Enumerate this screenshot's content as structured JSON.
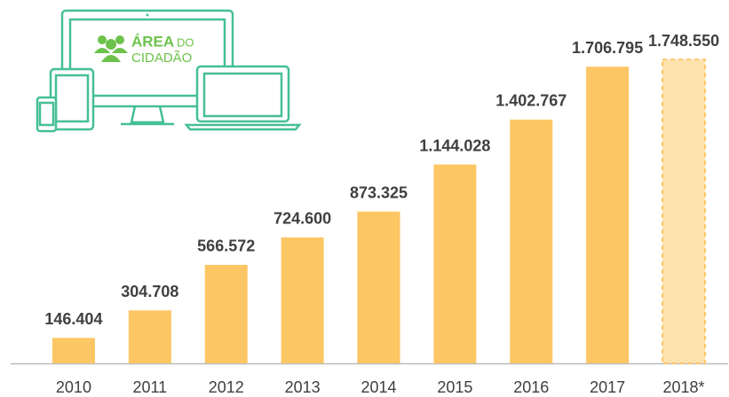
{
  "logo": {
    "word1": "ÁREA",
    "word2": "DO",
    "word3": "CIDADÃO"
  },
  "chart_data": {
    "type": "bar",
    "categories": [
      "2010",
      "2011",
      "2012",
      "2013",
      "2014",
      "2015",
      "2016",
      "2017",
      "2018*"
    ],
    "values": [
      146404,
      304708,
      566572,
      724600,
      873325,
      1144028,
      1402767,
      1706795,
      1748550
    ],
    "value_labels": [
      "146.404",
      "304.708",
      "566.572",
      "724.600",
      "873.325",
      "1.144.028",
      "1.402.767",
      "1.706.795",
      "1.748.550"
    ],
    "colors": [
      "#fdc664",
      "#fdc664",
      "#fdc664",
      "#fdc664",
      "#fdc664",
      "#fdc664",
      "#fdc664",
      "#fdc664",
      "#fde2ae"
    ],
    "styles": [
      "solid",
      "solid",
      "solid",
      "solid",
      "solid",
      "solid",
      "solid",
      "solid",
      "dashed"
    ],
    "ylim": [
      0,
      1800000
    ]
  }
}
